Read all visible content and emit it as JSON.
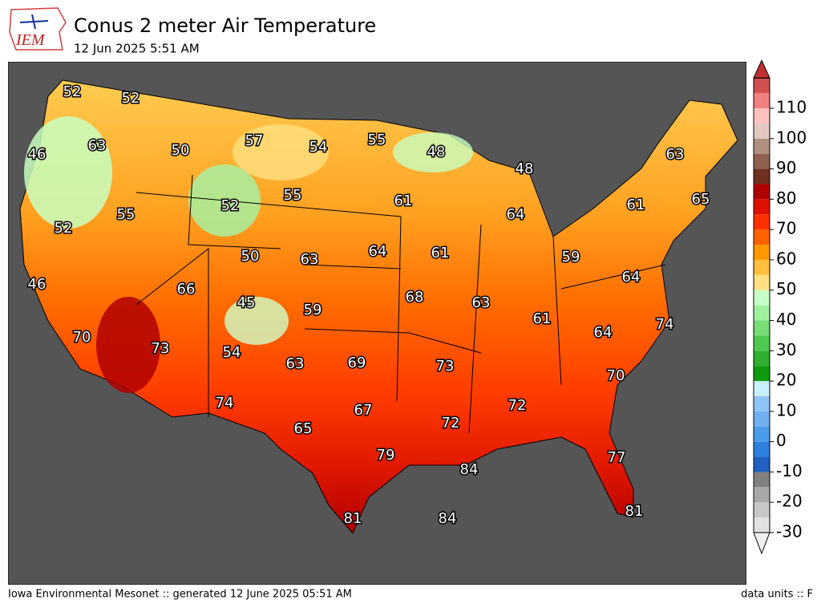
{
  "header": {
    "logo": "IEM",
    "title": "Conus 2 meter Air Temperature",
    "subtitle": "12 Jun 2025 5:51 AM"
  },
  "map": {
    "labels": [
      52,
      52,
      63,
      50,
      57,
      54,
      55,
      48,
      48,
      63,
      46,
      52,
      55,
      61,
      64,
      61,
      65,
      55,
      52,
      50,
      63,
      64,
      61,
      59,
      64,
      46,
      66,
      45,
      59,
      68,
      63,
      61,
      64,
      74,
      70,
      73,
      54,
      63,
      69,
      73,
      70,
      74,
      67,
      72,
      72,
      65,
      79,
      84,
      77,
      81,
      84,
      81
    ]
  },
  "colorbar": {
    "ticks": [
      -30,
      -20,
      -10,
      0,
      10,
      20,
      30,
      40,
      50,
      60,
      70,
      80,
      90,
      100,
      110
    ]
  },
  "footer": {
    "left": "Iowa Environmental Mesonet :: generated 12 June 2025 05:51 AM",
    "right": "data units :: F"
  }
}
